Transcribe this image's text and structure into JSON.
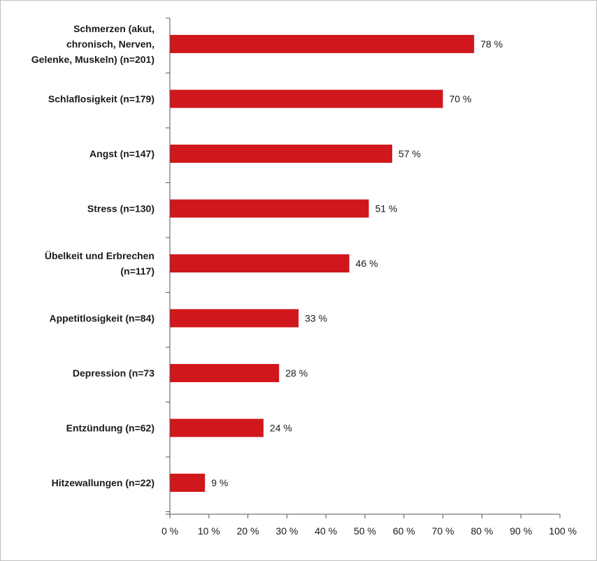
{
  "chart_data": {
    "type": "bar",
    "orientation": "horizontal",
    "title": "",
    "xlabel": "",
    "ylabel": "",
    "xlim": [
      0,
      100
    ],
    "grid": false,
    "bar_color": "#d0171b",
    "categories": [
      "Schmerzen (akut, chronisch, Nerven, Gelenke, Muskeln) (n=201)",
      "Schlaflosigkeit (n=179)",
      "Angst (n=147)",
      "Stress (n=130)",
      "Übelkeit und Erbrechen (n=117)",
      "Appetitlosigkeit (n=84)",
      "Depression (n=73",
      "Entzündung (n=62)",
      "Hitzewallungen (n=22)"
    ],
    "category_lines": [
      [
        "Schmerzen (akut,",
        "chronisch, Nerven,",
        "Gelenke, Muskeln) (n=201)"
      ],
      [
        "Schlaflosigkeit (n=179)"
      ],
      [
        "Angst (n=147)"
      ],
      [
        "Stress (n=130)"
      ],
      [
        "Übelkeit und Erbrechen",
        "(n=117)"
      ],
      [
        "Appetitlosigkeit (n=84)"
      ],
      [
        "Depression (n=73"
      ],
      [
        "Entzündung (n=62)"
      ],
      [
        "Hitzewallungen (n=22)"
      ]
    ],
    "values": [
      78,
      70,
      57,
      51,
      46,
      33,
      28,
      24,
      9
    ],
    "value_labels": [
      "78 %",
      "70 %",
      "57 %",
      "51 %",
      "46 %",
      "33 %",
      "28 %",
      "24 %",
      "9 %"
    ],
    "x_ticks": [
      0,
      10,
      20,
      30,
      40,
      50,
      60,
      70,
      80,
      90,
      100
    ],
    "x_tick_labels": [
      "0 %",
      "10 %",
      "20 %",
      "30 %",
      "40 %",
      "50 %",
      "60 %",
      "70 %",
      "80 %",
      "90 %",
      "100 %"
    ]
  }
}
